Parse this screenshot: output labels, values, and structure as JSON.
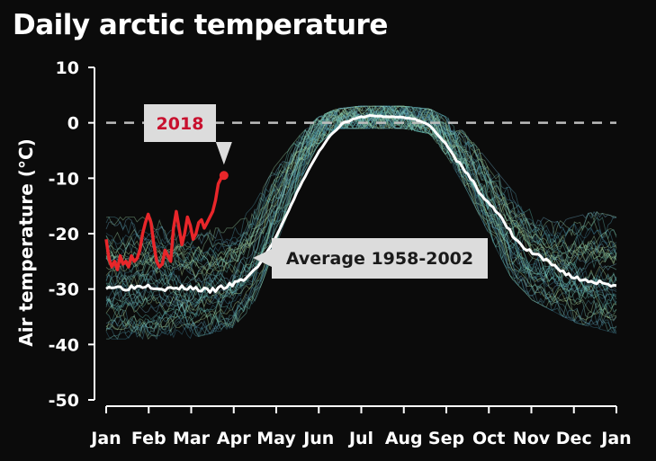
{
  "chart_data": {
    "type": "line",
    "title": "Daily arctic temperature",
    "xlabel": "",
    "ylabel": "Air temperature (°C)",
    "ylim": [
      -50,
      10
    ],
    "yticks": [
      10,
      0,
      -10,
      -20,
      -30,
      -40,
      -50
    ],
    "x_tick_labels": [
      "Jan",
      "Feb",
      "Mar",
      "Apr",
      "May",
      "Jun",
      "Jul",
      "Aug",
      "Sep",
      "Oct",
      "Nov",
      "Dec",
      "Jan"
    ],
    "reference_line": {
      "y": 0,
      "style": "dashed",
      "color": "#bdbdbd"
    },
    "grid": false,
    "colors": {
      "background": "#0b0b0b",
      "average": "#ffffff",
      "year_2018": "#e8262a",
      "spaghetti": [
        "#7fd0c0",
        "#5fb8b0",
        "#9ed6a8",
        "#4f97a8",
        "#b7e0a0",
        "#6aa7c0",
        "#3f7f96"
      ]
    },
    "spaghetti_band": {
      "description": "yearly traces",
      "day": [
        1,
        30,
        60,
        91,
        106,
        121,
        140,
        152,
        165,
        182,
        196,
        213,
        232,
        244,
        258,
        274,
        290,
        305,
        320,
        335,
        350,
        365
      ],
      "low": [
        -38,
        -38,
        -38,
        -36,
        -32,
        -22,
        -9,
        -3,
        0,
        0,
        0,
        0,
        -1,
        -5,
        -11,
        -19,
        -27,
        -31,
        -33,
        -35,
        -36,
        -37
      ],
      "high": [
        -18,
        -18,
        -20,
        -20,
        -16,
        -9,
        -3,
        0,
        1.5,
        2,
        2,
        2,
        1.5,
        0,
        -3,
        -8,
        -13,
        -17,
        -19,
        -18,
        -17,
        -18
      ]
    },
    "series": [
      {
        "name": "Average 1958-2002",
        "day": [
          1,
          15,
          30,
          45,
          60,
          75,
          91,
          100,
          110,
          121,
          130,
          140,
          152,
          160,
          170,
          182,
          190,
          200,
          213,
          222,
          232,
          244,
          252,
          260,
          268,
          274,
          282,
          290,
          298,
          305,
          315,
          325,
          335,
          345,
          355,
          365
        ],
        "values": [
          -29.5,
          -29.8,
          -29.3,
          -30,
          -29.7,
          -30.4,
          -29.2,
          -28.2,
          -25.7,
          -21.2,
          -16.5,
          -11,
          -5.5,
          -2.5,
          0,
          1,
          1.3,
          1.1,
          1,
          0.6,
          -0.5,
          -4,
          -7,
          -10,
          -12.5,
          -14.5,
          -17,
          -20,
          -22.5,
          -23.5,
          -25,
          -26.5,
          -28,
          -28.5,
          -28.8,
          -29.3
        ]
      },
      {
        "name": "2018",
        "day": [
          1,
          3,
          5,
          7,
          9,
          11,
          13,
          15,
          17,
          19,
          21,
          23,
          25,
          27,
          29,
          31,
          33,
          35,
          37,
          39,
          41,
          43,
          45,
          47,
          49,
          51,
          53,
          55,
          57,
          59,
          61,
          63,
          65,
          67,
          69,
          71,
          73,
          75,
          77,
          79,
          81,
          83,
          85
        ],
        "values": [
          -21,
          -24.5,
          -26,
          -25,
          -26.5,
          -24,
          -25.5,
          -25,
          -26,
          -24,
          -25,
          -24.5,
          -23,
          -20,
          -18,
          -16.5,
          -18,
          -22,
          -25,
          -26,
          -25.5,
          -23,
          -24,
          -25,
          -19,
          -16,
          -19,
          -22,
          -20,
          -17,
          -18.5,
          -21,
          -20,
          -18,
          -17.5,
          -19,
          -18,
          -17,
          -16,
          -14,
          -11,
          -10,
          -9.5
        ]
      }
    ]
  },
  "annotations": {
    "year_label": "2018",
    "average_label": "Average 1958-2002"
  }
}
